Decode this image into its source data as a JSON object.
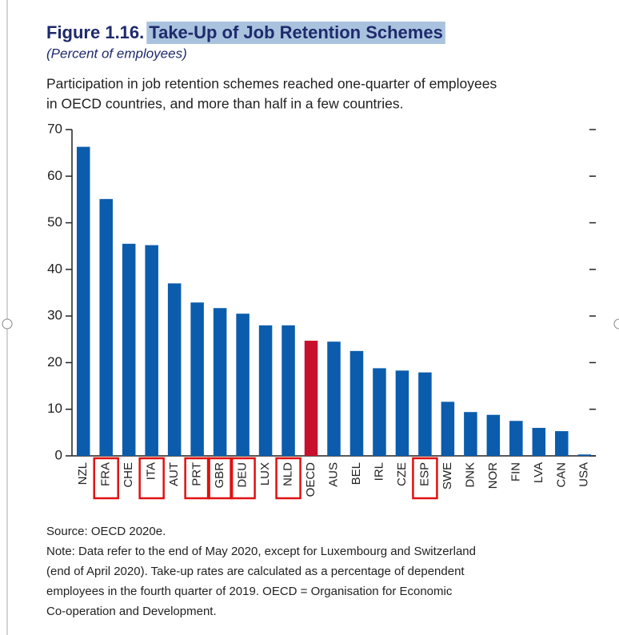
{
  "chart_data": {
    "type": "bar",
    "title_number": "Figure 1.16.",
    "title": "Take-Up of Job Retention Schemes",
    "subtitle": "(Percent of employees)",
    "description": [
      "Participation in job retention schemes reached one-quarter of employees",
      "in OECD countries, and more than half in a few countries."
    ],
    "categories": [
      "NZL",
      "FRA",
      "CHE",
      "ITA",
      "AUT",
      "PRT",
      "GBR",
      "DEU",
      "LUX",
      "NLD",
      "OECD",
      "AUS",
      "BEL",
      "IRL",
      "CZE",
      "ESP",
      "SWE",
      "DNK",
      "NOR",
      "FIN",
      "LVA",
      "CAN",
      "USA"
    ],
    "values": [
      66.3,
      55.1,
      45.5,
      45.2,
      37,
      32.9,
      31.7,
      30.5,
      28,
      28,
      24.7,
      24.5,
      22.5,
      18.8,
      18.3,
      17.9,
      11.6,
      9.4,
      8.8,
      7.5,
      6,
      5.3,
      0.3
    ],
    "colors": [
      "#0b5cad",
      "#0b5cad",
      "#0b5cad",
      "#0b5cad",
      "#0b5cad",
      "#0b5cad",
      "#0b5cad",
      "#0b5cad",
      "#0b5cad",
      "#0b5cad",
      "#c8102e",
      "#0b5cad",
      "#0b5cad",
      "#0b5cad",
      "#0b5cad",
      "#0b5cad",
      "#0b5cad",
      "#0b5cad",
      "#0b5cad",
      "#0b5cad",
      "#0b5cad",
      "#0b5cad",
      "#0b5cad"
    ],
    "boxed_categories": [
      "FRA",
      "ITA",
      "PRT",
      "GBR",
      "DEU",
      "NLD",
      "ESP"
    ],
    "ylim": [
      0,
      70
    ],
    "yticks": [
      0,
      10,
      20,
      30,
      40,
      50,
      60,
      70
    ],
    "source": "Source: OECD 2020e.",
    "note": [
      "Note: Data refer to the end of May 2020, except for Luxembourg and Switzerland",
      "(end of April 2020). Take-up rates are calculated as a percentage of dependent",
      "employees in the fourth quarter of 2019. OECD = Organisation for Economic",
      "Co-operation and Development."
    ]
  }
}
